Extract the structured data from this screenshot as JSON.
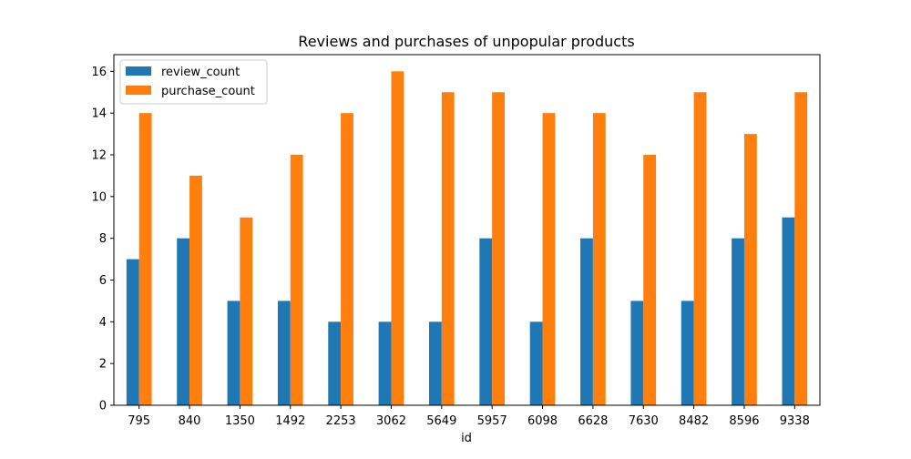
{
  "chart_data": {
    "type": "bar",
    "title": "Reviews and purchases of unpopular products",
    "xlabel": "id",
    "ylabel": "",
    "categories": [
      "795",
      "840",
      "1350",
      "1492",
      "2253",
      "3062",
      "5649",
      "5957",
      "6098",
      "6628",
      "7630",
      "8482",
      "8596",
      "9338"
    ],
    "series": [
      {
        "name": "review_count",
        "color": "#1f77b4",
        "values": [
          7,
          8,
          5,
          5,
          4,
          4,
          4,
          8,
          4,
          8,
          5,
          5,
          8,
          9
        ]
      },
      {
        "name": "purchase_count",
        "color": "#ff7f0e",
        "values": [
          14,
          11,
          9,
          12,
          14,
          16,
          15,
          15,
          14,
          14,
          12,
          15,
          13,
          15
        ]
      }
    ],
    "ylim": [
      0,
      16.8
    ],
    "yticks": [
      0,
      2,
      4,
      6,
      8,
      10,
      12,
      14,
      16
    ],
    "grid": false,
    "legend_position": "upper-left"
  }
}
